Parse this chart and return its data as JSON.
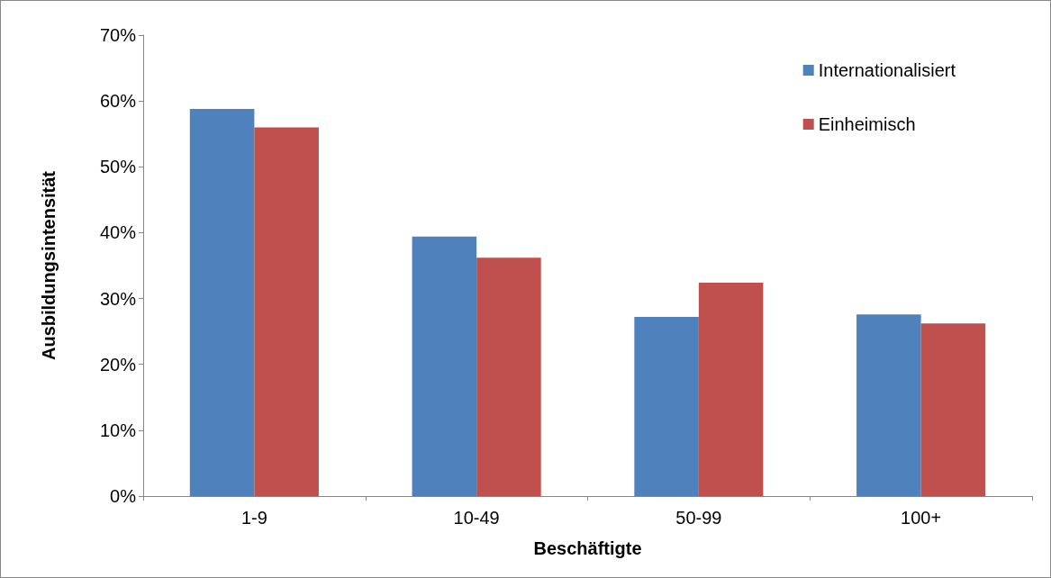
{
  "chart_data": {
    "type": "bar",
    "xlabel": "Beschäftigte",
    "ylabel": "Ausbildungsintensität",
    "categories": [
      "1-9",
      "10-49",
      "50-99",
      "100+"
    ],
    "series": [
      {
        "name": "Internationalisiert",
        "color": "#4f81bd",
        "values": [
          58.8,
          39.4,
          27.2,
          27.6
        ]
      },
      {
        "name": "Einheimisch",
        "color": "#c0504d",
        "values": [
          56.0,
          36.2,
          32.4,
          26.2
        ]
      }
    ],
    "ylim": [
      0,
      70
    ],
    "yticks": [
      {
        "value": 0,
        "label": "0%"
      },
      {
        "value": 10,
        "label": "10%"
      },
      {
        "value": 20,
        "label": "20%"
      },
      {
        "value": 30,
        "label": "30%"
      },
      {
        "value": 40,
        "label": "40%"
      },
      {
        "value": 50,
        "label": "50%"
      },
      {
        "value": 60,
        "label": "60%"
      },
      {
        "value": 70,
        "label": "70%"
      }
    ],
    "grid": false,
    "legend": "top right"
  }
}
